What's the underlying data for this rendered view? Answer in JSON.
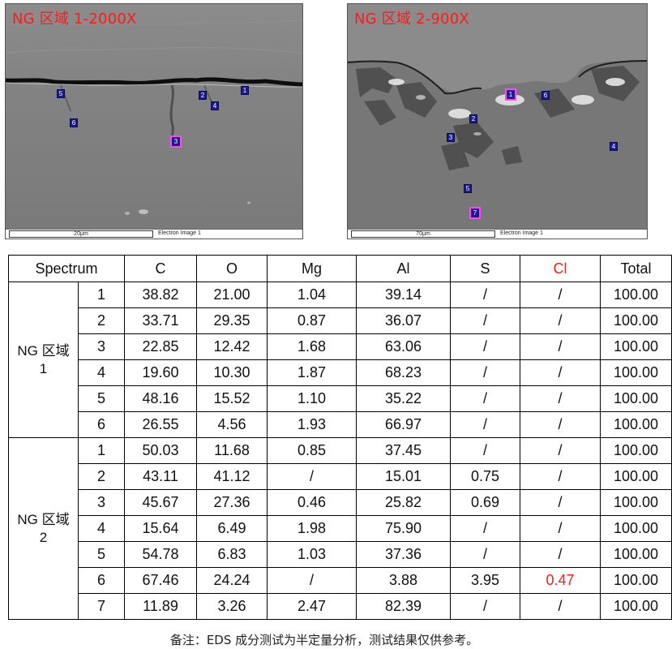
{
  "images": [
    {
      "title": "NG 区域 1-2000X",
      "scale_label": "20μm",
      "image_label": "Electron Image 1",
      "markers": [
        "1",
        "2",
        "3",
        "4",
        "5",
        "6"
      ]
    },
    {
      "title": "NG 区域 2-900X",
      "scale_label": "70μm",
      "image_label": "Electron Image 1",
      "markers": [
        "1",
        "2",
        "3",
        "4",
        "5",
        "6",
        "7"
      ]
    }
  ],
  "table": {
    "headers": [
      "Spectrum",
      "C",
      "O",
      "Mg",
      "Al",
      "S",
      "Cl",
      "Total"
    ],
    "header_colors": {
      "Cl": "#ff1a1a"
    },
    "highlight_color": "#ff1a1a",
    "groups": [
      {
        "label_line1": "NG 区域",
        "label_line2": "1",
        "rows": [
          {
            "spectrum": "1",
            "C": "38.82",
            "O": "21.00",
            "Mg": "1.04",
            "Al": "39.14",
            "S": "/",
            "Cl": "/",
            "Total": "100.00"
          },
          {
            "spectrum": "2",
            "C": "33.71",
            "O": "29.35",
            "Mg": "0.87",
            "Al": "36.07",
            "S": "/",
            "Cl": "/",
            "Total": "100.00"
          },
          {
            "spectrum": "3",
            "C": "22.85",
            "O": "12.42",
            "Mg": "1.68",
            "Al": "63.06",
            "S": "/",
            "Cl": "/",
            "Total": "100.00"
          },
          {
            "spectrum": "4",
            "C": "19.60",
            "O": "10.30",
            "Mg": "1.87",
            "Al": "68.23",
            "S": "/",
            "Cl": "/",
            "Total": "100.00"
          },
          {
            "spectrum": "5",
            "C": "48.16",
            "O": "15.52",
            "Mg": "1.10",
            "Al": "35.22",
            "S": "/",
            "Cl": "/",
            "Total": "100.00"
          },
          {
            "spectrum": "6",
            "C": "26.55",
            "O": "4.56",
            "Mg": "1.93",
            "Al": "66.97",
            "S": "/",
            "Cl": "/",
            "Total": "100.00"
          }
        ]
      },
      {
        "label_line1": "NG 区域",
        "label_line2": "2",
        "rows": [
          {
            "spectrum": "1",
            "C": "50.03",
            "O": "11.68",
            "Mg": "0.85",
            "Al": "37.45",
            "S": "/",
            "Cl": "/",
            "Total": "100.00"
          },
          {
            "spectrum": "2",
            "C": "43.11",
            "O": "41.12",
            "Mg": "/",
            "Al": "15.01",
            "S": "0.75",
            "Cl": "/",
            "Total": "100.00"
          },
          {
            "spectrum": "3",
            "C": "45.67",
            "O": "27.36",
            "Mg": "0.46",
            "Al": "25.82",
            "S": "0.69",
            "Cl": "/",
            "Total": "100.00"
          },
          {
            "spectrum": "4",
            "C": "15.64",
            "O": "6.49",
            "Mg": "1.98",
            "Al": "75.90",
            "S": "/",
            "Cl": "/",
            "Total": "100.00"
          },
          {
            "spectrum": "5",
            "C": "54.78",
            "O": "6.83",
            "Mg": "1.03",
            "Al": "37.36",
            "S": "/",
            "Cl": "/",
            "Total": "100.00"
          },
          {
            "spectrum": "6",
            "C": "67.46",
            "O": "24.24",
            "Mg": "/",
            "Al": "3.88",
            "S": "3.95",
            "Cl": "0.47",
            "Total": "100.00",
            "highlight": "Cl"
          },
          {
            "spectrum": "7",
            "C": "11.89",
            "O": "3.26",
            "Mg": "2.47",
            "Al": "82.39",
            "S": "/",
            "Cl": "/",
            "Total": "100.00"
          }
        ]
      }
    ]
  },
  "note": "备注：EDS 成分测试为半定量分析，测试结果仅供参考。"
}
